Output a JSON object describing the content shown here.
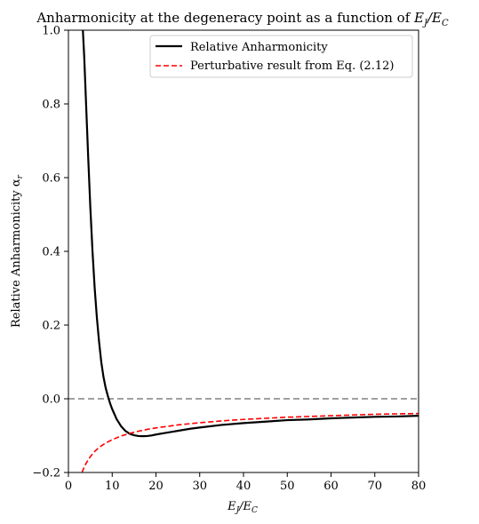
{
  "chart_data": {
    "type": "line",
    "title_main": "Anharmonicity at the degeneracy point as a function of ",
    "title_math": "E",
    "title_math_sub": "J",
    "title_math_rest": "/E",
    "title_math_sub2": "C",
    "xlabel_main": "E",
    "xlabel_sub": "J",
    "xlabel_rest": "/E",
    "xlabel_sub2": "C",
    "ylabel": "Relative Anharmonicity α",
    "ylabel_sub": "r",
    "xlim": [
      0,
      80
    ],
    "ylim": [
      -0.2,
      1.0
    ],
    "xticks": [
      0,
      10,
      20,
      30,
      40,
      50,
      60,
      70,
      80
    ],
    "yticks": [
      -0.2,
      0.0,
      0.2,
      0.4,
      0.6,
      0.8,
      1.0
    ],
    "ytick_labels": [
      "−0.2",
      "0.0",
      "0.2",
      "0.4",
      "0.6",
      "0.8",
      "1.0"
    ],
    "grid": false,
    "legend_position": "top-right",
    "reference_line": {
      "y": 0.0,
      "color": "#808080",
      "style": "dashed"
    },
    "series": [
      {
        "name": "Relative Anharmonicity",
        "color": "#000000",
        "style": "solid",
        "x": [
          3.3,
          3.6,
          4.0,
          4.5,
          5.0,
          5.5,
          6.0,
          6.5,
          7.0,
          7.5,
          8.0,
          8.5,
          9.0,
          9.5,
          10.0,
          11.0,
          12.0,
          13.0,
          14.0,
          15.0,
          16.0,
          17.0,
          18.0,
          19.0,
          20.0,
          22.0,
          24.0,
          26.0,
          28.0,
          30.0,
          35.0,
          40.0,
          45.0,
          50.0,
          55.0,
          60.0,
          65.0,
          70.0,
          75.0,
          80.0
        ],
        "y": [
          1.0,
          0.93,
          0.81,
          0.66,
          0.52,
          0.4,
          0.3,
          0.22,
          0.155,
          0.1,
          0.06,
          0.03,
          0.008,
          -0.012,
          -0.028,
          -0.055,
          -0.074,
          -0.087,
          -0.095,
          -0.099,
          -0.101,
          -0.1015,
          -0.101,
          -0.0995,
          -0.097,
          -0.093,
          -0.089,
          -0.085,
          -0.081,
          -0.078,
          -0.071,
          -0.066,
          -0.062,
          -0.058,
          -0.056,
          -0.053,
          -0.051,
          -0.049,
          -0.048,
          -0.046
        ]
      },
      {
        "name": "Perturbative result from Eq. (2.12)",
        "color": "#ff0000",
        "style": "dashed",
        "x": [
          3.1,
          3.5,
          4.0,
          4.5,
          5.0,
          6.0,
          7.0,
          8.0,
          9.0,
          10.0,
          12.0,
          14.0,
          16.0,
          18.0,
          20.0,
          25.0,
          30.0,
          35.0,
          40.0,
          45.0,
          50.0,
          55.0,
          60.0,
          65.0,
          70.0,
          75.0,
          80.0
        ],
        "y": [
          -0.2,
          -0.188,
          -0.176,
          -0.166,
          -0.157,
          -0.143,
          -0.132,
          -0.124,
          -0.117,
          -0.111,
          -0.101,
          -0.094,
          -0.088,
          -0.083,
          -0.079,
          -0.071,
          -0.065,
          -0.06,
          -0.056,
          -0.053,
          -0.05,
          -0.048,
          -0.046,
          -0.044,
          -0.042,
          -0.041,
          -0.04
        ]
      }
    ]
  }
}
